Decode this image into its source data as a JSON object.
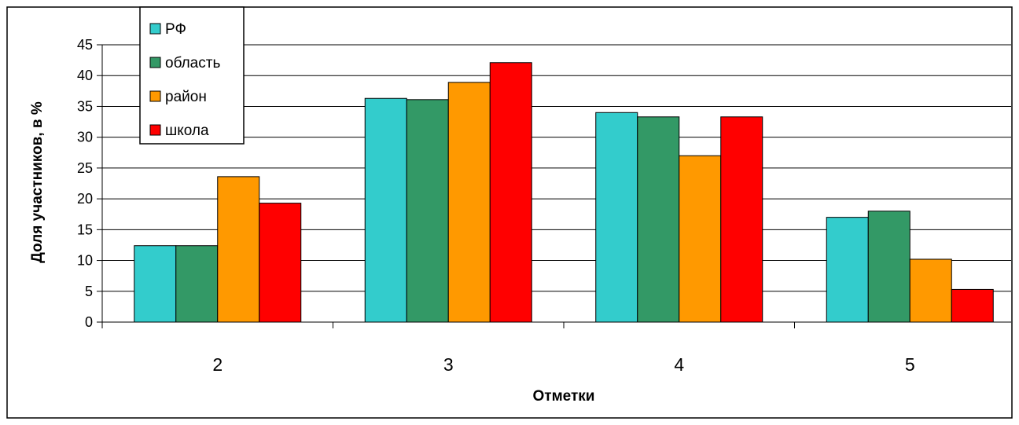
{
  "chart_data": {
    "type": "bar",
    "title": "",
    "xlabel": "Отметки",
    "ylabel": "Доля участников, в %",
    "categories": [
      "2",
      "3",
      "4",
      "5"
    ],
    "ylim": [
      0,
      45
    ],
    "yticks": [
      0,
      5,
      10,
      15,
      20,
      25,
      30,
      35,
      40,
      45
    ],
    "grid": true,
    "legend_position": "top-left",
    "series": [
      {
        "name": "РФ",
        "color": "#33CCCC",
        "values": [
          12.4,
          36.3,
          34.0,
          17.0
        ]
      },
      {
        "name": "область",
        "color": "#339966",
        "values": [
          12.4,
          36.1,
          33.3,
          18.0
        ]
      },
      {
        "name": "район",
        "color": "#FF9900",
        "values": [
          23.6,
          38.9,
          27.0,
          10.2
        ]
      },
      {
        "name": "школа",
        "color": "#FF0000",
        "values": [
          19.3,
          42.1,
          33.3,
          5.3
        ]
      }
    ]
  }
}
